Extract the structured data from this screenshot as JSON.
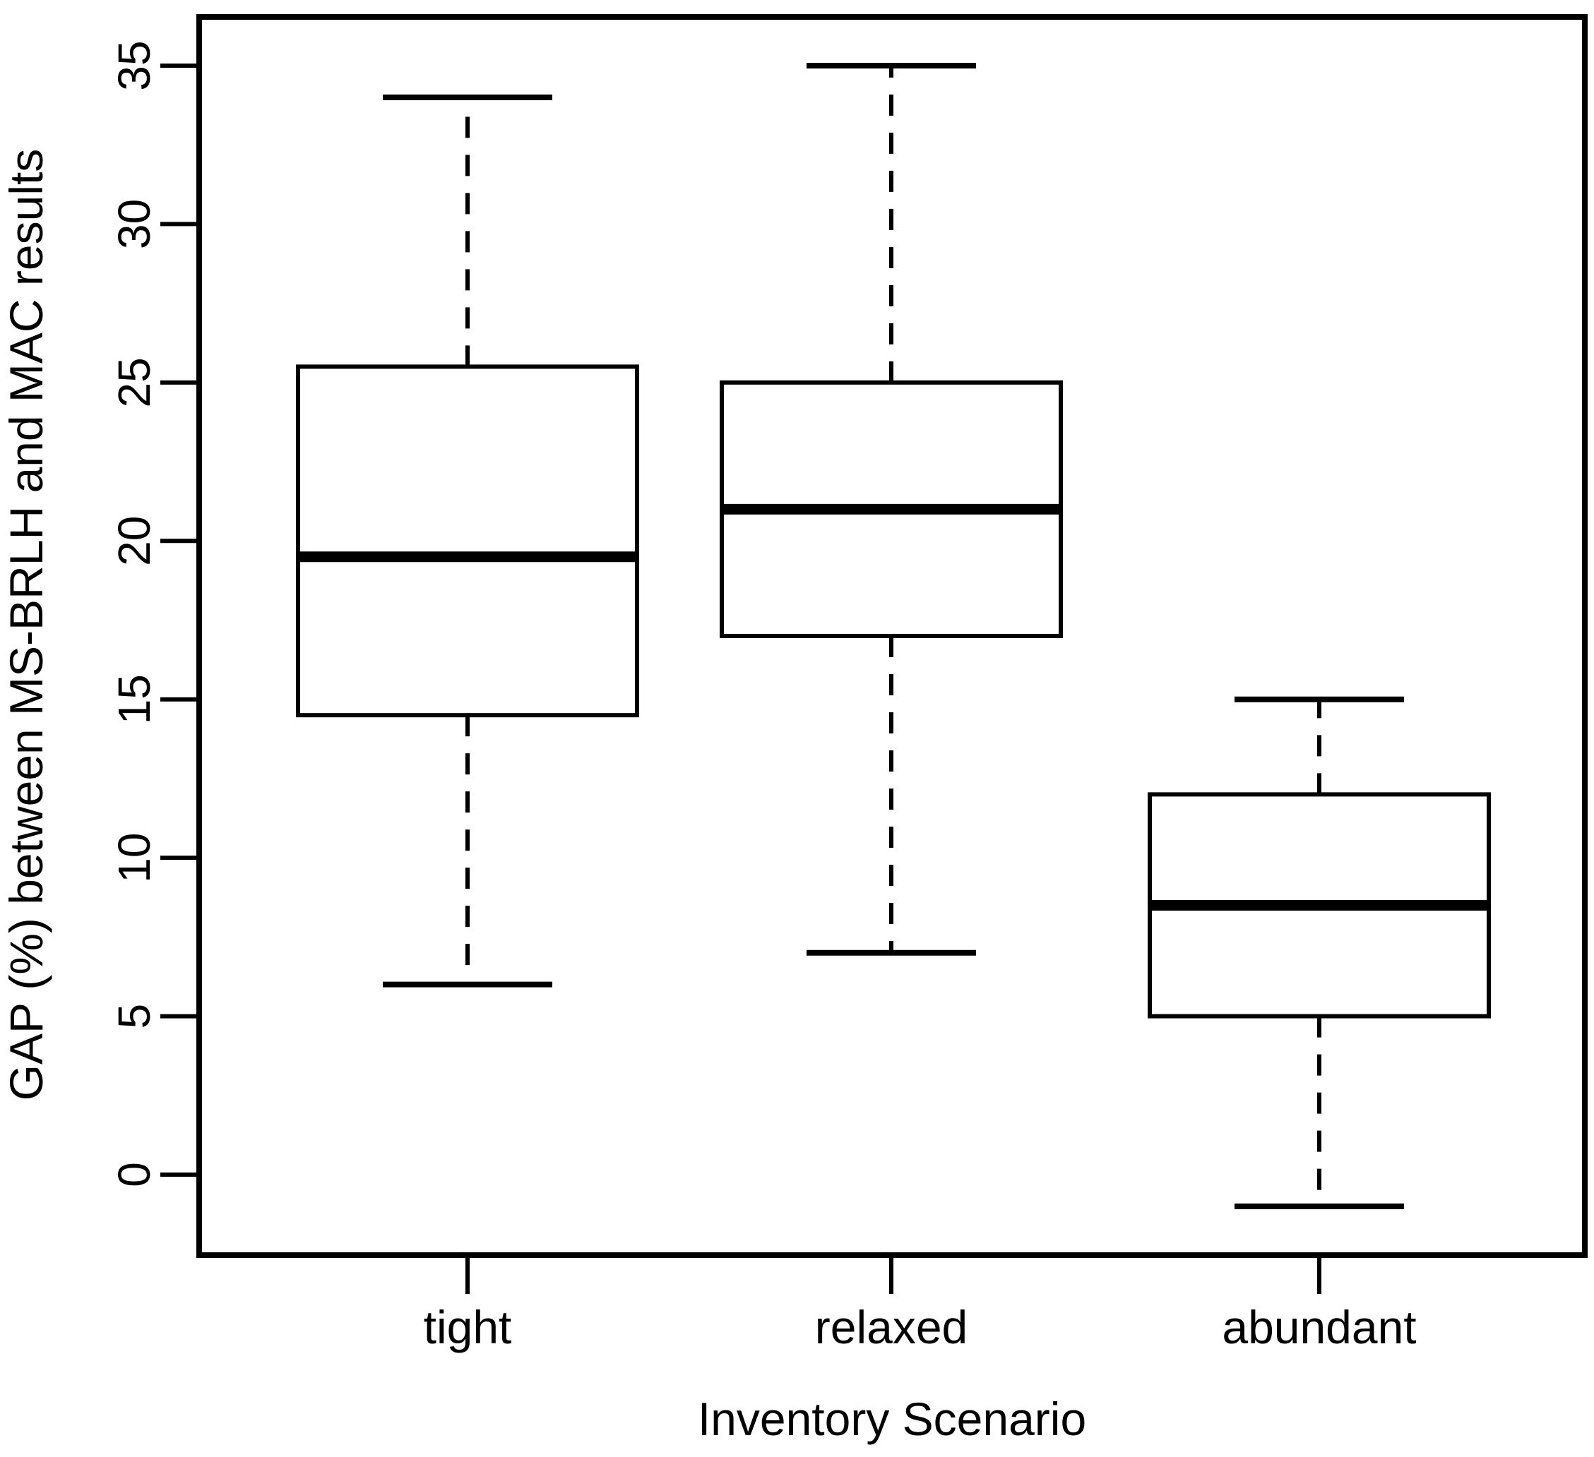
{
  "figure": {
    "background": "#ffffff",
    "line_color": "#000000"
  },
  "chart_data": {
    "type": "boxplot",
    "title": "",
    "xlabel": "Inventory Scenario",
    "ylabel": "GAP (%) between MS-BRLH and MAC results",
    "categories": [
      "tight",
      "relaxed",
      "abundant"
    ],
    "y_ticks": [
      0,
      5,
      10,
      15,
      20,
      25,
      30,
      35
    ],
    "ylim": [
      -2.5,
      36.5
    ],
    "grid": false,
    "legend": null,
    "whisker_style": "dashed",
    "series": [
      {
        "name": "tight",
        "min": 6,
        "q1": 14.5,
        "median": 19.5,
        "q3": 25.5,
        "max": 34,
        "outliers": []
      },
      {
        "name": "relaxed",
        "min": 7,
        "q1": 17,
        "median": 21,
        "q3": 25,
        "max": 35,
        "outliers": []
      },
      {
        "name": "abundant",
        "min": -1,
        "q1": 5,
        "median": 8.5,
        "q3": 12,
        "max": 15,
        "outliers": []
      }
    ]
  }
}
